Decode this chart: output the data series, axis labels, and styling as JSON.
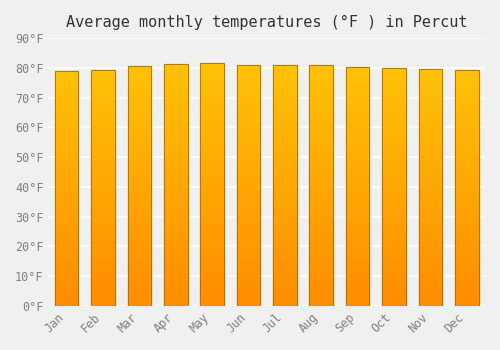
{
  "title": "Average monthly temperatures (°F ) in Percut",
  "months": [
    "Jan",
    "Feb",
    "Mar",
    "Apr",
    "May",
    "Jun",
    "Jul",
    "Aug",
    "Sep",
    "Oct",
    "Nov",
    "Dec"
  ],
  "values": [
    79.0,
    79.3,
    80.6,
    81.3,
    81.7,
    81.1,
    80.8,
    80.8,
    80.4,
    79.9,
    79.5,
    79.2
  ],
  "ylim": [
    0,
    90
  ],
  "yticks": [
    0,
    10,
    20,
    30,
    40,
    50,
    60,
    70,
    80,
    90
  ],
  "ytick_labels": [
    "0°F",
    "10°F",
    "20°F",
    "30°F",
    "40°F",
    "50°F",
    "60°F",
    "70°F",
    "80°F",
    "90°F"
  ],
  "bar_color_top": "#FFC107",
  "bar_color_bottom": "#FF8C00",
  "bar_edge_color": "#A07010",
  "background_color": "#F0F0F0",
  "grid_color": "#FFFFFF",
  "title_fontsize": 11,
  "tick_fontsize": 8.5,
  "font_family": "monospace"
}
